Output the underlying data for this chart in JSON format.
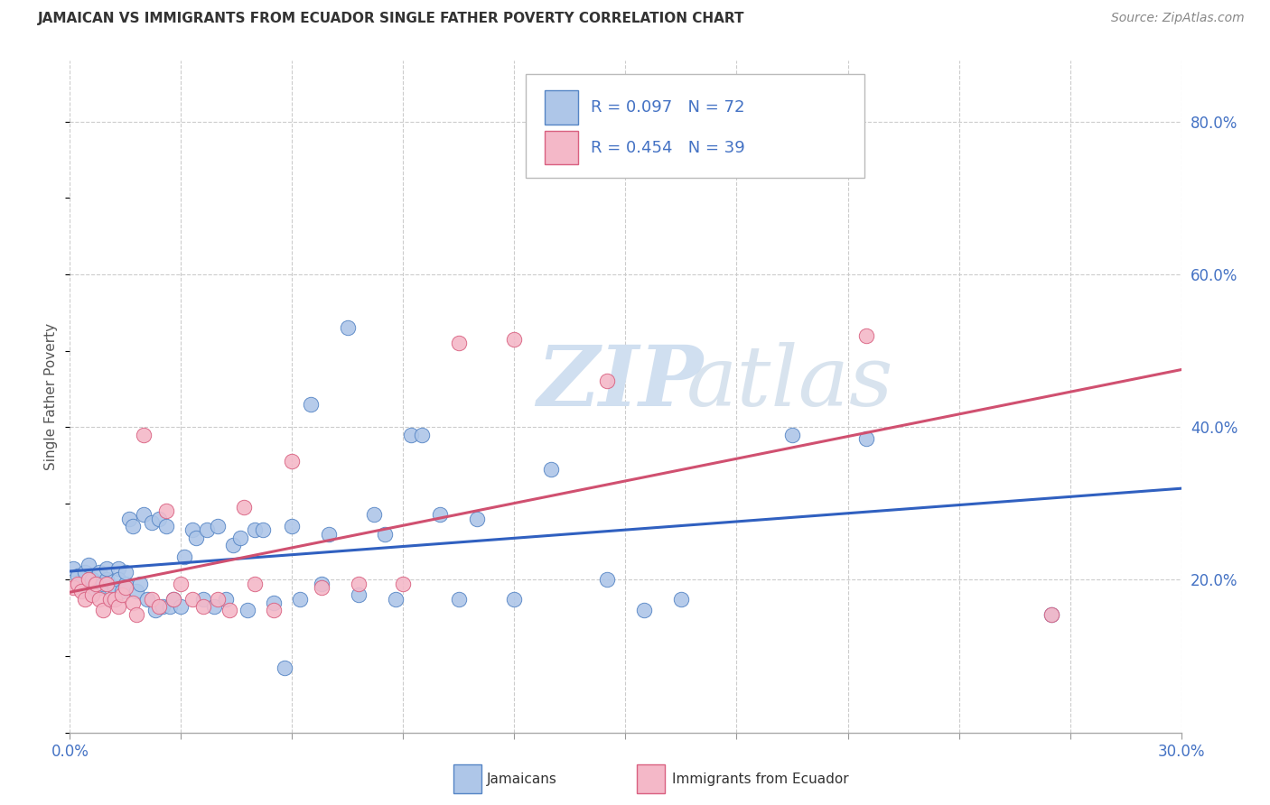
{
  "title": "JAMAICAN VS IMMIGRANTS FROM ECUADOR SINGLE FATHER POVERTY CORRELATION CHART",
  "source": "Source: ZipAtlas.com",
  "ylabel": "Single Father Poverty",
  "xmin": 0.0,
  "xmax": 0.3,
  "ymin": 0.0,
  "ymax": 0.88,
  "ytick_positions": [
    0.2,
    0.4,
    0.6,
    0.8
  ],
  "ytick_labels": [
    "20.0%",
    "40.0%",
    "60.0%",
    "80.0%"
  ],
  "xtick_label_left": "0.0%",
  "xtick_label_right": "30.0%",
  "n_xticks": 10,
  "legend_r1": "R = 0.097",
  "legend_n1": "N = 72",
  "legend_r2": "R = 0.454",
  "legend_n2": "N = 39",
  "color_jamaican_fill": "#aec6e8",
  "color_jamaican_edge": "#5585c5",
  "color_ecuador_fill": "#f4b8c8",
  "color_ecuador_edge": "#d96080",
  "color_line_jamaican": "#3060c0",
  "color_line_ecuador": "#d05070",
  "watermark_zip": "ZIP",
  "watermark_atlas": "atlas",
  "watermark_color": "#d0dff0",
  "jamaican_x": [
    0.001,
    0.002,
    0.003,
    0.004,
    0.005,
    0.005,
    0.006,
    0.007,
    0.008,
    0.008,
    0.009,
    0.01,
    0.01,
    0.011,
    0.012,
    0.013,
    0.013,
    0.014,
    0.015,
    0.015,
    0.016,
    0.017,
    0.018,
    0.019,
    0.02,
    0.021,
    0.022,
    0.023,
    0.024,
    0.025,
    0.026,
    0.027,
    0.028,
    0.03,
    0.031,
    0.033,
    0.034,
    0.036,
    0.037,
    0.039,
    0.04,
    0.042,
    0.044,
    0.046,
    0.048,
    0.05,
    0.052,
    0.055,
    0.058,
    0.06,
    0.062,
    0.065,
    0.068,
    0.07,
    0.075,
    0.078,
    0.082,
    0.085,
    0.088,
    0.092,
    0.095,
    0.1,
    0.105,
    0.11,
    0.12,
    0.13,
    0.145,
    0.155,
    0.165,
    0.195,
    0.215,
    0.265
  ],
  "jamaican_y": [
    0.215,
    0.205,
    0.195,
    0.21,
    0.185,
    0.22,
    0.2,
    0.195,
    0.21,
    0.19,
    0.195,
    0.2,
    0.215,
    0.175,
    0.19,
    0.215,
    0.2,
    0.185,
    0.195,
    0.21,
    0.28,
    0.27,
    0.185,
    0.195,
    0.285,
    0.175,
    0.275,
    0.16,
    0.28,
    0.165,
    0.27,
    0.165,
    0.175,
    0.165,
    0.23,
    0.265,
    0.255,
    0.175,
    0.265,
    0.165,
    0.27,
    0.175,
    0.245,
    0.255,
    0.16,
    0.265,
    0.265,
    0.17,
    0.085,
    0.27,
    0.175,
    0.43,
    0.195,
    0.26,
    0.53,
    0.18,
    0.285,
    0.26,
    0.175,
    0.39,
    0.39,
    0.285,
    0.175,
    0.28,
    0.175,
    0.345,
    0.2,
    0.16,
    0.175,
    0.39,
    0.385,
    0.155
  ],
  "ecuador_x": [
    0.001,
    0.002,
    0.003,
    0.004,
    0.005,
    0.006,
    0.007,
    0.008,
    0.009,
    0.01,
    0.011,
    0.012,
    0.013,
    0.014,
    0.015,
    0.017,
    0.018,
    0.02,
    0.022,
    0.024,
    0.026,
    0.028,
    0.03,
    0.033,
    0.036,
    0.04,
    0.043,
    0.047,
    0.05,
    0.055,
    0.06,
    0.068,
    0.078,
    0.09,
    0.105,
    0.12,
    0.145,
    0.215,
    0.265
  ],
  "ecuador_y": [
    0.19,
    0.195,
    0.185,
    0.175,
    0.2,
    0.18,
    0.195,
    0.175,
    0.16,
    0.195,
    0.175,
    0.175,
    0.165,
    0.18,
    0.19,
    0.17,
    0.155,
    0.39,
    0.175,
    0.165,
    0.29,
    0.175,
    0.195,
    0.175,
    0.165,
    0.175,
    0.16,
    0.295,
    0.195,
    0.16,
    0.355,
    0.19,
    0.195,
    0.195,
    0.51,
    0.515,
    0.46,
    0.52,
    0.155
  ]
}
